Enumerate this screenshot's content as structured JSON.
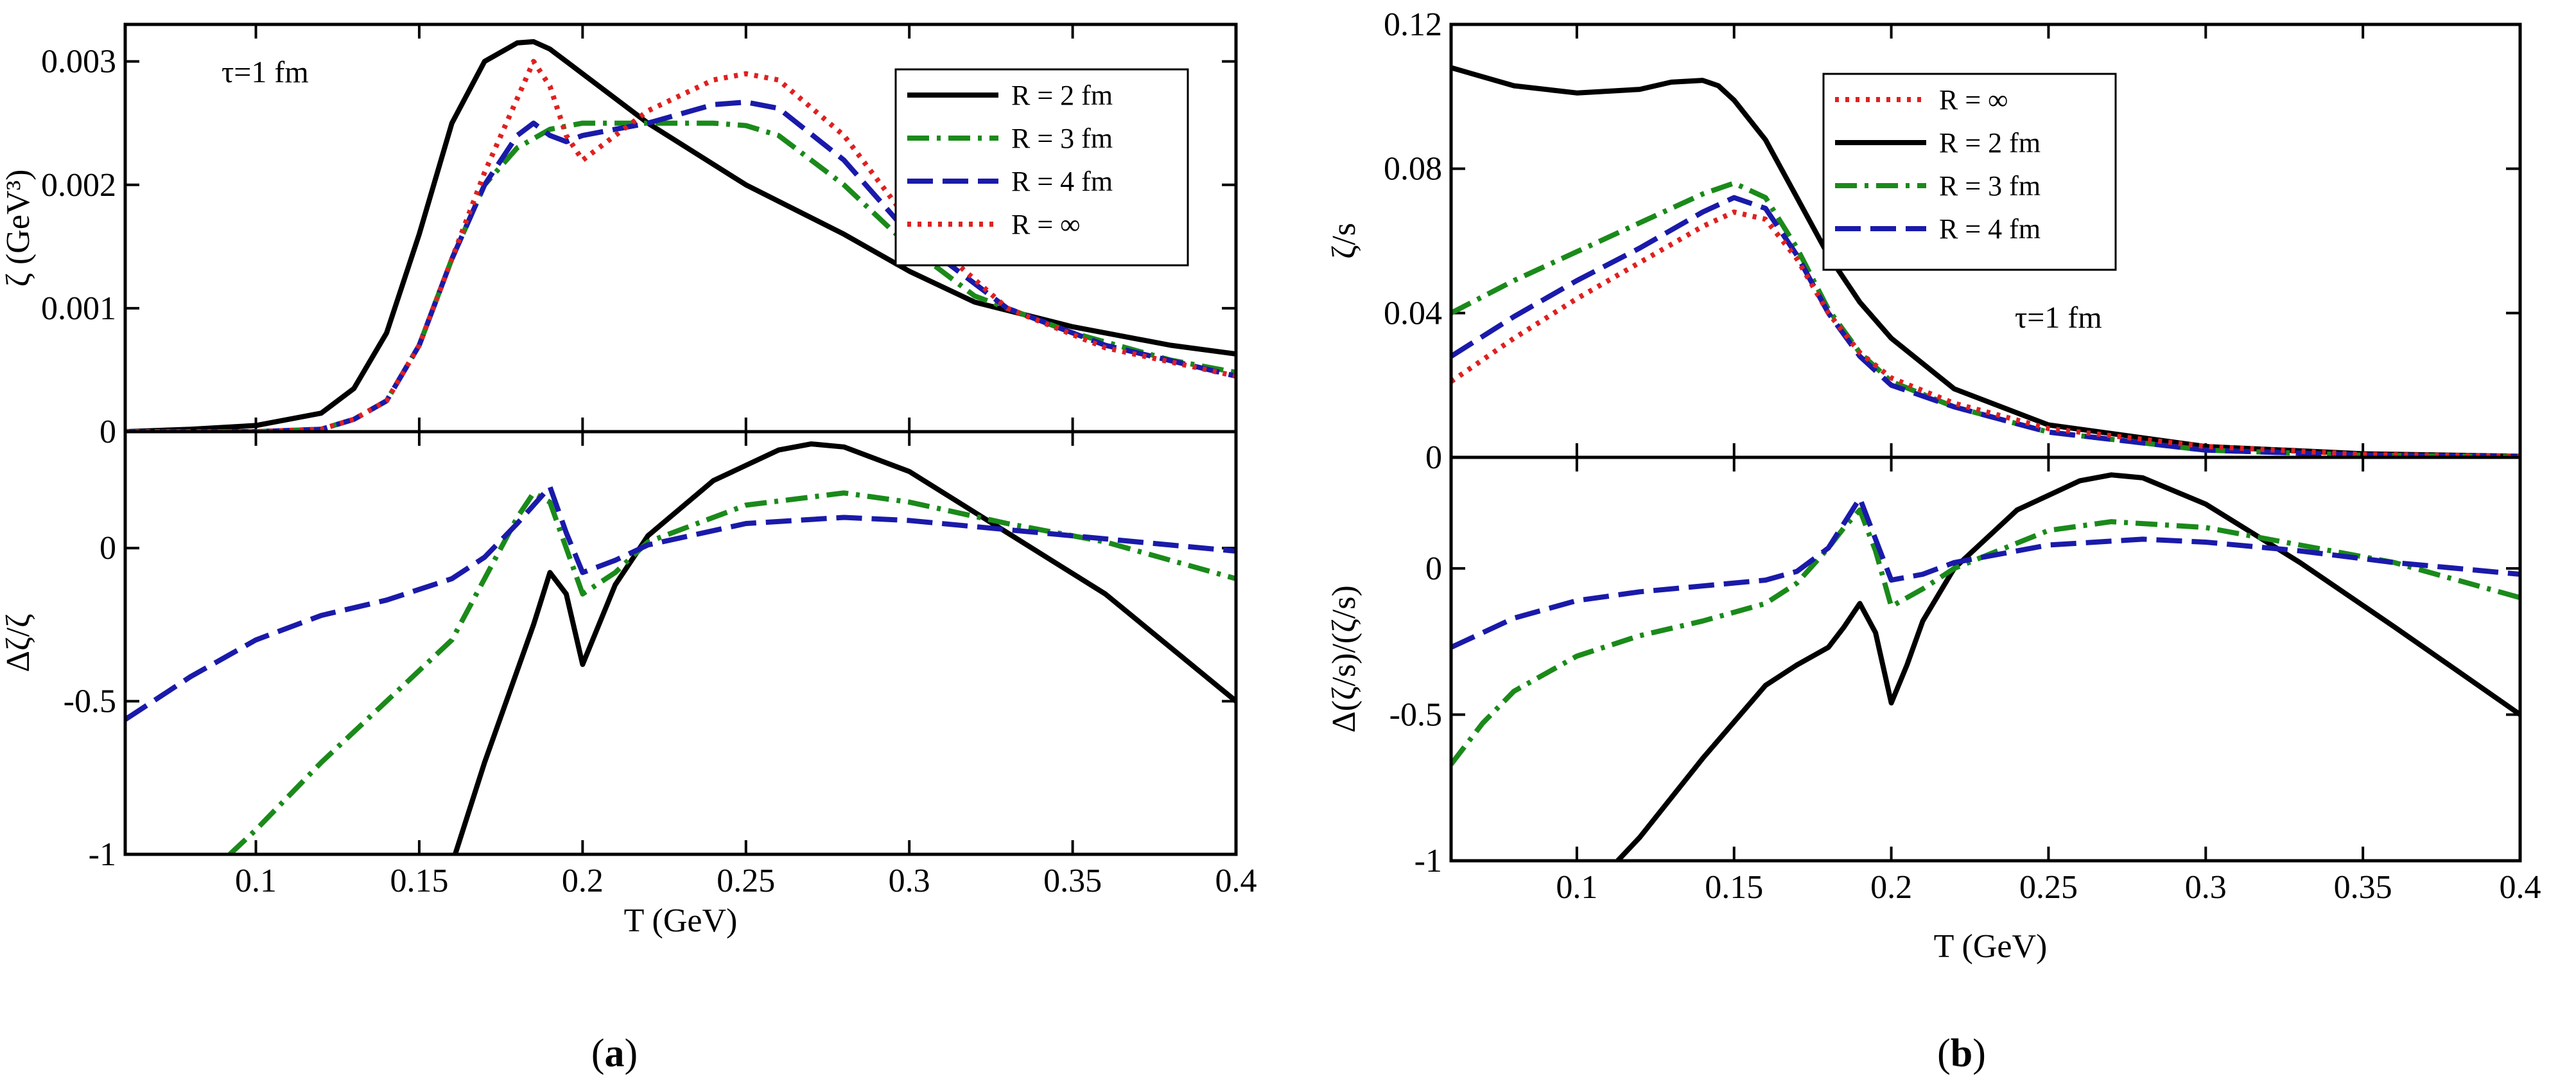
{
  "chart_data": [
    {
      "panel": "a",
      "panel_label_prefix": "(",
      "panel_label_letter": "a",
      "panel_label_suffix": ")",
      "annotation": "τ=1 fm",
      "xlabel": "T (GeV)",
      "xlim": [
        0.06,
        0.4
      ],
      "xticks": [
        0.1,
        0.15,
        0.2,
        0.25,
        0.3,
        0.35,
        0.4
      ],
      "xtick_labels": [
        "0.1",
        "0.15",
        "0.2",
        "0.25",
        "0.3",
        "0.35",
        "0.4"
      ],
      "legend_order": [
        "R = 2 fm",
        "R = 3 fm",
        "R = 4 fm",
        "R = ∞"
      ],
      "top": {
        "type": "line",
        "ylabel": "ζ (GeV³)",
        "ylim": [
          0,
          0.0033
        ],
        "yticks": [
          0,
          0.001,
          0.002,
          0.003
        ],
        "ytick_labels": [
          "0",
          "0.001",
          "0.002",
          "0.003"
        ],
        "series": [
          {
            "name": "R = 2 fm",
            "color": "#000000",
            "dash": "solid",
            "x": [
              0.06,
              0.08,
              0.1,
              0.12,
              0.13,
              0.14,
              0.15,
              0.16,
              0.17,
              0.18,
              0.185,
              0.19,
              0.2,
              0.22,
              0.25,
              0.28,
              0.3,
              0.32,
              0.35,
              0.38,
              0.4
            ],
            "y": [
              0,
              2e-05,
              5e-05,
              0.00015,
              0.00035,
              0.0008,
              0.0016,
              0.0025,
              0.003,
              0.00315,
              0.00316,
              0.0031,
              0.0029,
              0.0025,
              0.002,
              0.0016,
              0.0013,
              0.00105,
              0.00085,
              0.0007,
              0.00063
            ]
          },
          {
            "name": "R = 3 fm",
            "color": "#1a8a1a",
            "dash": "dashdot",
            "x": [
              0.06,
              0.1,
              0.12,
              0.13,
              0.14,
              0.15,
              0.16,
              0.17,
              0.18,
              0.19,
              0.2,
              0.22,
              0.24,
              0.25,
              0.26,
              0.28,
              0.3,
              0.32,
              0.35,
              0.38,
              0.4
            ],
            "y": [
              0,
              0,
              2e-05,
              0.0001,
              0.00025,
              0.0007,
              0.0014,
              0.002,
              0.0023,
              0.00245,
              0.0025,
              0.0025,
              0.0025,
              0.00248,
              0.0024,
              0.002,
              0.0015,
              0.0011,
              0.0008,
              0.00058,
              0.00048
            ]
          },
          {
            "name": "R = 4 fm",
            "color": "#1a1aaa",
            "dash": "longdash",
            "x": [
              0.06,
              0.1,
              0.12,
              0.13,
              0.14,
              0.15,
              0.16,
              0.17,
              0.18,
              0.185,
              0.19,
              0.195,
              0.2,
              0.22,
              0.24,
              0.25,
              0.26,
              0.28,
              0.3,
              0.33,
              0.36,
              0.4
            ],
            "y": [
              0,
              0,
              2e-05,
              0.0001,
              0.00025,
              0.0007,
              0.0014,
              0.002,
              0.0024,
              0.0025,
              0.0024,
              0.00235,
              0.0024,
              0.0025,
              0.00265,
              0.00267,
              0.00262,
              0.0022,
              0.0016,
              0.001,
              0.0007,
              0.00045
            ]
          },
          {
            "name": "R = ∞",
            "color": "#e02020",
            "dash": "dotted",
            "x": [
              0.06,
              0.1,
              0.12,
              0.13,
              0.14,
              0.15,
              0.16,
              0.17,
              0.18,
              0.185,
              0.19,
              0.195,
              0.2,
              0.21,
              0.22,
              0.24,
              0.25,
              0.26,
              0.28,
              0.3,
              0.33,
              0.36,
              0.4
            ],
            "y": [
              0,
              0,
              2e-05,
              0.0001,
              0.00025,
              0.0007,
              0.0014,
              0.0021,
              0.0027,
              0.003,
              0.0028,
              0.0024,
              0.0022,
              0.0024,
              0.0026,
              0.00285,
              0.0029,
              0.00285,
              0.0024,
              0.0017,
              0.001,
              0.00068,
              0.00045
            ]
          }
        ]
      },
      "bottom": {
        "type": "line",
        "ylabel": "Δζ/ζ",
        "ylim": [
          -1,
          0.38
        ],
        "yticks": [
          -1,
          -0.5,
          0
        ],
        "ytick_labels": [
          "-1",
          "-0.5",
          "0"
        ],
        "series": [
          {
            "name": "R = 2 fm",
            "color": "#000000",
            "dash": "solid",
            "x": [
              0.161,
              0.17,
              0.18,
              0.185,
              0.19,
              0.195,
              0.2,
              0.205,
              0.21,
              0.22,
              0.24,
              0.26,
              0.27,
              0.28,
              0.3,
              0.33,
              0.36,
              0.4
            ],
            "y": [
              -1,
              -0.7,
              -0.4,
              -0.25,
              -0.08,
              -0.15,
              -0.38,
              -0.25,
              -0.12,
              0.04,
              0.22,
              0.32,
              0.34,
              0.33,
              0.25,
              0.05,
              -0.15,
              -0.5
            ]
          },
          {
            "name": "R = 3 fm",
            "color": "#1a8a1a",
            "dash": "dashdot",
            "x": [
              0.092,
              0.1,
              0.12,
              0.14,
              0.16,
              0.17,
              0.18,
              0.185,
              0.19,
              0.195,
              0.2,
              0.21,
              0.22,
              0.25,
              0.28,
              0.3,
              0.33,
              0.36,
              0.4
            ],
            "y": [
              -1,
              -0.92,
              -0.7,
              -0.5,
              -0.3,
              -0.1,
              0.1,
              0.18,
              0.15,
              0,
              -0.15,
              -0.08,
              0.02,
              0.14,
              0.18,
              0.15,
              0.08,
              0.02,
              -0.1
            ]
          },
          {
            "name": "R = 4 fm",
            "color": "#1a1aaa",
            "dash": "longdash",
            "x": [
              0.06,
              0.08,
              0.1,
              0.12,
              0.14,
              0.16,
              0.17,
              0.18,
              0.19,
              0.195,
              0.2,
              0.21,
              0.22,
              0.25,
              0.28,
              0.3,
              0.33,
              0.36,
              0.4
            ],
            "y": [
              -0.56,
              -0.42,
              -0.3,
              -0.22,
              -0.17,
              -0.1,
              -0.03,
              0.08,
              0.2,
              0.05,
              -0.08,
              -0.04,
              0.01,
              0.08,
              0.1,
              0.09,
              0.06,
              0.03,
              -0.01
            ]
          }
        ]
      }
    },
    {
      "panel": "b",
      "panel_label_prefix": "(",
      "panel_label_letter": "b",
      "panel_label_suffix": ")",
      "annotation": "τ=1 fm",
      "xlabel": "T (GeV)",
      "xlim": [
        0.06,
        0.4
      ],
      "xticks": [
        0.1,
        0.15,
        0.2,
        0.25,
        0.3,
        0.35,
        0.4
      ],
      "xtick_labels": [
        "0.1",
        "0.15",
        "0.2",
        "0.25",
        "0.3",
        "0.35",
        "0.4"
      ],
      "legend_order": [
        "R = ∞",
        "R = 2 fm",
        "R = 3 fm",
        "R = 4 fm"
      ],
      "top": {
        "type": "line",
        "ylabel": "ζ/s",
        "ylim": [
          0,
          0.12
        ],
        "yticks": [
          0,
          0.04,
          0.08,
          0.12
        ],
        "ytick_labels": [
          "0",
          "0.04",
          "0.08",
          "0.12"
        ],
        "series": [
          {
            "name": "R = 2 fm",
            "color": "#000000",
            "dash": "solid",
            "x": [
              0.06,
              0.08,
              0.1,
              0.12,
              0.13,
              0.14,
              0.145,
              0.15,
              0.16,
              0.17,
              0.18,
              0.19,
              0.2,
              0.22,
              0.25,
              0.3,
              0.35,
              0.4
            ],
            "y": [
              0.108,
              0.103,
              0.101,
              0.102,
              0.104,
              0.1045,
              0.103,
              0.099,
              0.088,
              0.072,
              0.056,
              0.043,
              0.033,
              0.019,
              0.009,
              0.003,
              0.001,
              0.0003
            ]
          },
          {
            "name": "R = 3 fm",
            "color": "#1a8a1a",
            "dash": "dashdot",
            "x": [
              0.06,
              0.08,
              0.1,
              0.12,
              0.14,
              0.15,
              0.16,
              0.17,
              0.18,
              0.19,
              0.2,
              0.22,
              0.25,
              0.3,
              0.35,
              0.4
            ],
            "y": [
              0.04,
              0.049,
              0.057,
              0.065,
              0.073,
              0.076,
              0.072,
              0.058,
              0.041,
              0.029,
              0.021,
              0.014,
              0.007,
              0.002,
              0.0006,
              0.0002
            ]
          },
          {
            "name": "R = 4 fm",
            "color": "#1a1aaa",
            "dash": "longdash",
            "x": [
              0.06,
              0.08,
              0.1,
              0.12,
              0.14,
              0.15,
              0.16,
              0.17,
              0.18,
              0.19,
              0.2,
              0.22,
              0.25,
              0.3,
              0.35,
              0.4
            ],
            "y": [
              0.028,
              0.039,
              0.049,
              0.058,
              0.068,
              0.072,
              0.069,
              0.056,
              0.04,
              0.028,
              0.02,
              0.014,
              0.007,
              0.002,
              0.0006,
              0.0002
            ]
          },
          {
            "name": "R = ∞",
            "color": "#e02020",
            "dash": "dotted",
            "x": [
              0.06,
              0.08,
              0.1,
              0.12,
              0.14,
              0.15,
              0.16,
              0.17,
              0.18,
              0.19,
              0.2,
              0.22,
              0.25,
              0.3,
              0.35,
              0.4
            ],
            "y": [
              0.021,
              0.033,
              0.044,
              0.054,
              0.064,
              0.068,
              0.066,
              0.055,
              0.04,
              0.029,
              0.022,
              0.015,
              0.008,
              0.003,
              0.0008,
              0.0003
            ]
          }
        ]
      },
      "bottom": {
        "type": "line",
        "ylabel": "Δ(ζ/s)/(ζ/s)",
        "ylim": [
          -1,
          0.38
        ],
        "yticks": [
          -1,
          -0.5,
          0
        ],
        "ytick_labels": [
          "-1",
          "-0.5",
          "0"
        ],
        "series": [
          {
            "name": "R = 2 fm",
            "color": "#000000",
            "dash": "solid",
            "x": [
              0.113,
              0.12,
              0.14,
              0.16,
              0.17,
              0.18,
              0.185,
              0.19,
              0.195,
              0.2,
              0.205,
              0.21,
              0.22,
              0.24,
              0.26,
              0.27,
              0.28,
              0.3,
              0.33,
              0.36,
              0.4
            ],
            "y": [
              -1,
              -0.92,
              -0.65,
              -0.4,
              -0.33,
              -0.27,
              -0.2,
              -0.12,
              -0.22,
              -0.46,
              -0.33,
              -0.18,
              0,
              0.2,
              0.3,
              0.32,
              0.31,
              0.22,
              0.02,
              -0.2,
              -0.5
            ]
          },
          {
            "name": "R = 3 fm",
            "color": "#1a8a1a",
            "dash": "dashdot",
            "x": [
              0.06,
              0.07,
              0.08,
              0.1,
              0.12,
              0.14,
              0.16,
              0.17,
              0.18,
              0.185,
              0.19,
              0.195,
              0.2,
              0.21,
              0.22,
              0.25,
              0.27,
              0.3,
              0.33,
              0.36,
              0.4
            ],
            "y": [
              -0.67,
              -0.53,
              -0.42,
              -0.3,
              -0.23,
              -0.18,
              -0.12,
              -0.05,
              0.07,
              0.14,
              0.2,
              0.06,
              -0.13,
              -0.07,
              0,
              0.13,
              0.16,
              0.14,
              0.08,
              0.02,
              -0.1
            ]
          },
          {
            "name": "R = 4 fm",
            "color": "#1a1aaa",
            "dash": "longdash",
            "x": [
              0.06,
              0.08,
              0.1,
              0.12,
              0.14,
              0.16,
              0.17,
              0.18,
              0.19,
              0.195,
              0.2,
              0.21,
              0.22,
              0.25,
              0.28,
              0.3,
              0.33,
              0.36,
              0.4
            ],
            "y": [
              -0.27,
              -0.17,
              -0.11,
              -0.08,
              -0.06,
              -0.04,
              -0.01,
              0.07,
              0.24,
              0.1,
              -0.04,
              -0.02,
              0.02,
              0.08,
              0.1,
              0.09,
              0.06,
              0.02,
              -0.02
            ]
          }
        ]
      }
    }
  ]
}
